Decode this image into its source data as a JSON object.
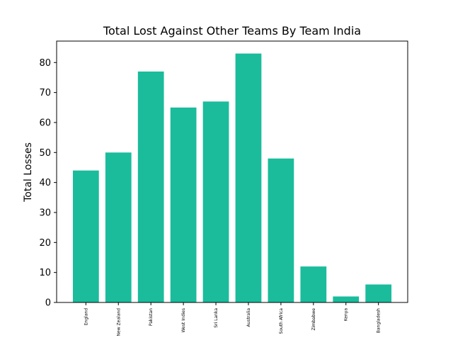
{
  "chart_data": {
    "type": "bar",
    "title": "Total Lost Against Other Teams By Team India",
    "xlabel": "",
    "ylabel": "Total Losses",
    "categories": [
      "England",
      "New Zealand",
      "Pakistan",
      "West Indies",
      "Sri Lanka",
      "Australia",
      "South Africa",
      "Zimbabwe",
      "Kenya",
      "Bangladesh"
    ],
    "values": [
      44,
      50,
      77,
      65,
      67,
      83,
      48,
      12,
      2,
      6
    ],
    "ylim": [
      0,
      87.15
    ],
    "yticks": [
      0,
      10,
      20,
      30,
      40,
      50,
      60,
      70,
      80
    ],
    "grid": false,
    "bar_color": "#1abc9c"
  }
}
